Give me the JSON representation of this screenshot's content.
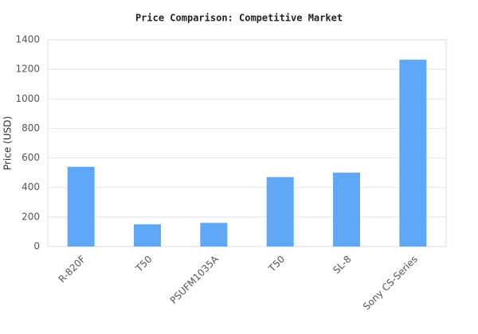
{
  "chart_data": {
    "type": "bar",
    "title": "Price Comparison: Competitive Market",
    "y_label": "Price (USD)",
    "categories": [
      "R-820F",
      "T50",
      "PSUFM1035A",
      "T50",
      "SL-8",
      "Sony CS-Series"
    ],
    "values": [
      540,
      150,
      160,
      470,
      500,
      1265
    ],
    "color": "#60a8f5",
    "ylim": [
      0,
      1400
    ],
    "yticks": [
      0,
      200,
      400,
      600,
      800,
      1000,
      1200,
      1400
    ],
    "grid": true
  }
}
